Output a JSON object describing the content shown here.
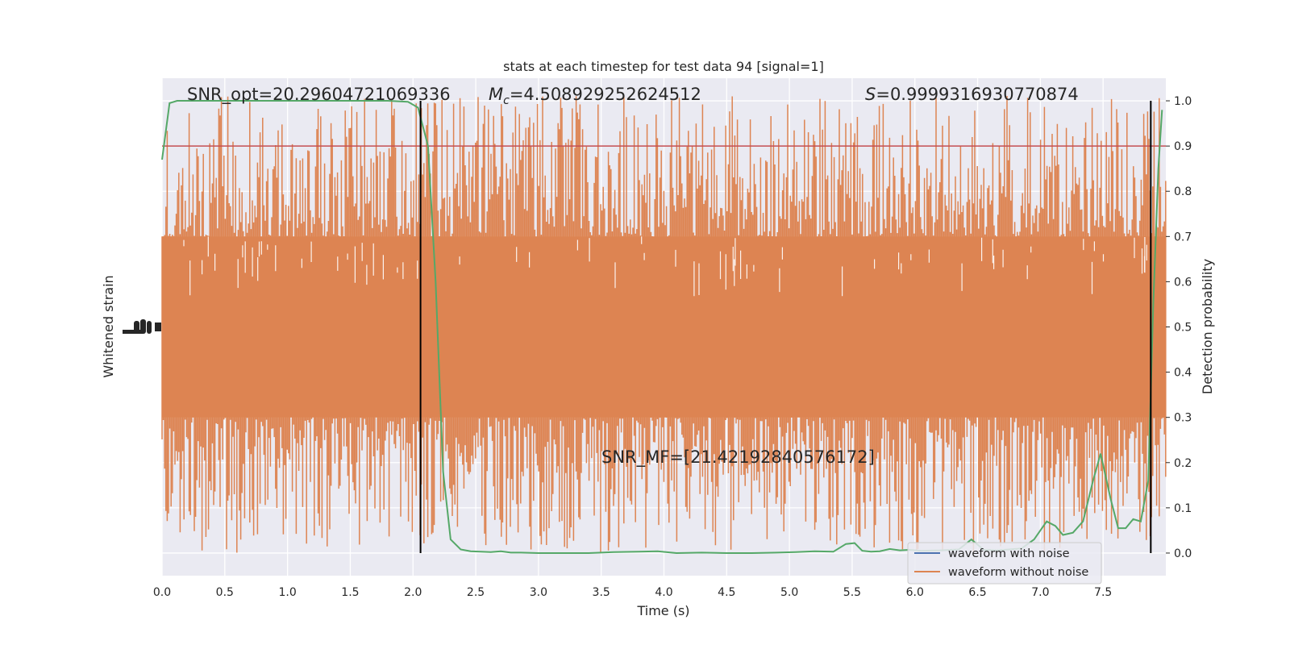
{
  "chart_data": {
    "type": "line",
    "title": "stats at each timestep for test data 94 [signal=1]",
    "xlabel": "Time (s)",
    "ylabel_left": "Whitened strain",
    "ylabel_right": "Detection probability",
    "xlim": [
      0.0,
      8.0
    ],
    "ylim_right": [
      -0.05,
      1.05
    ],
    "x_ticks": [
      "0.0",
      "0.5",
      "1.0",
      "1.5",
      "2.0",
      "2.5",
      "3.0",
      "3.5",
      "4.0",
      "4.5",
      "5.0",
      "5.5",
      "6.0",
      "6.5",
      "7.0",
      "7.5"
    ],
    "right_ticks": [
      "0.0",
      "0.1",
      "0.2",
      "0.3",
      "0.4",
      "0.5",
      "0.6",
      "0.7",
      "0.8",
      "0.9",
      "1.0"
    ],
    "threshold": 0.9,
    "event_markers_x": [
      2.06,
      7.88
    ],
    "annotations": {
      "snr_opt": "SNR_opt=20.29604721069336",
      "mc_symbol": "M",
      "mc_sub": "c",
      "mc_value": "=4.508929252624512",
      "s_symbol": "S",
      "s_value": "=0.9999316930770874",
      "snr_mf": "SNR_MF=[21.42192840576172]"
    },
    "legend": {
      "placement": "lower-right",
      "entries": [
        "waveform with noise",
        "waveform without noise"
      ]
    },
    "noise_band": {
      "x_range": [
        0.0,
        8.0
      ],
      "core_prob_range": [
        0.3,
        0.7
      ],
      "spike_max": 1.0,
      "spike_min": 0.0
    },
    "detection_probability": {
      "x": [
        0.0,
        0.06,
        0.12,
        0.3,
        0.6,
        0.9,
        1.2,
        1.5,
        1.8,
        1.96,
        2.04,
        2.12,
        2.18,
        2.24,
        2.3,
        2.38,
        2.46,
        2.54,
        2.62,
        2.7,
        2.78,
        2.86,
        3.0,
        3.2,
        3.4,
        3.6,
        3.8,
        3.95,
        4.1,
        4.3,
        4.5,
        4.7,
        4.9,
        5.05,
        5.2,
        5.35,
        5.45,
        5.52,
        5.58,
        5.65,
        5.72,
        5.8,
        5.88,
        5.95,
        6.05,
        6.2,
        6.35,
        6.45,
        6.55,
        6.65,
        6.75,
        6.85,
        6.95,
        7.05,
        7.12,
        7.18,
        7.26,
        7.34,
        7.42,
        7.48,
        7.52,
        7.56,
        7.62,
        7.68,
        7.74,
        7.8,
        7.86,
        7.9,
        7.94,
        7.97
      ],
      "y": [
        0.87,
        0.995,
        1.0,
        1.0,
        1.0,
        1.0,
        1.0,
        1.0,
        1.0,
        0.998,
        0.985,
        0.9,
        0.6,
        0.18,
        0.03,
        0.008,
        0.004,
        0.003,
        0.002,
        0.004,
        0.001,
        0.001,
        0.0,
        0.0,
        0.0,
        0.002,
        0.003,
        0.004,
        0.0,
        0.001,
        0.0,
        0.0,
        0.001,
        0.002,
        0.004,
        0.003,
        0.02,
        0.022,
        0.005,
        0.003,
        0.004,
        0.009,
        0.006,
        0.007,
        0.005,
        0.006,
        0.008,
        0.03,
        0.007,
        0.006,
        0.008,
        0.01,
        0.03,
        0.07,
        0.06,
        0.04,
        0.045,
        0.07,
        0.16,
        0.22,
        0.17,
        0.12,
        0.055,
        0.055,
        0.075,
        0.07,
        0.16,
        0.55,
        0.85,
        0.98
      ]
    },
    "colors": {
      "noisy": "#4c72b0",
      "clean": "#dd8452",
      "prob": "#55a868",
      "threshold": "#c44e52",
      "marker": "#000000",
      "plot_bg": "#eaeaf2",
      "grid": "#ffffff"
    },
    "grid": true
  }
}
